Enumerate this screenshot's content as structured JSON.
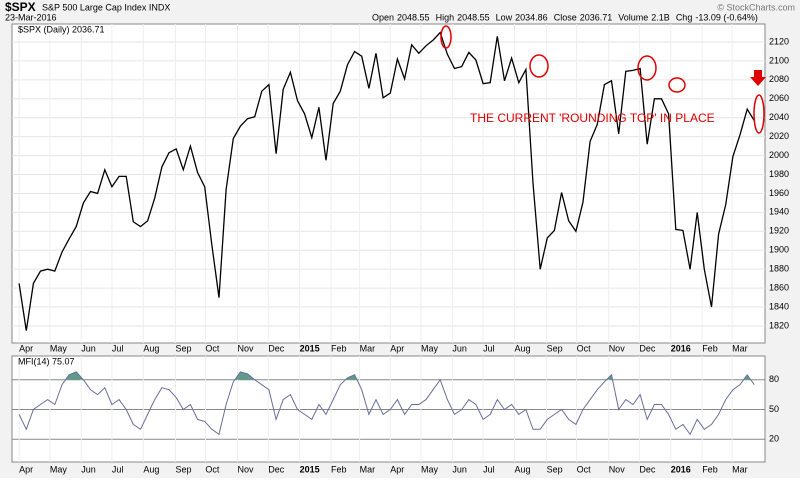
{
  "header": {
    "symbol": "$SPX",
    "name": "S&P 500 Large Cap Index INDX",
    "date": "23-Mar-2016",
    "source": "© StockCharts.com",
    "quote": [
      {
        "label": "Open",
        "value": 2048.55
      },
      {
        "label": "High",
        "value": 2048.55
      },
      {
        "label": "Low",
        "value": 2034.86
      },
      {
        "label": "Close",
        "value": 2036.71
      },
      {
        "label": "Volume",
        "value": "2.1B"
      },
      {
        "label": "Chg",
        "value": "-13.09 (-0.64%)"
      }
    ]
  },
  "chart_data": [
    {
      "type": "line",
      "annotation": "THE CURRENT 'ROUNDING TOP' IN PLACE",
      "x": [
        0,
        1,
        2,
        3,
        4,
        5,
        6,
        7,
        8,
        9,
        10,
        11,
        12,
        13,
        14,
        15,
        16,
        17,
        18,
        19,
        20,
        21,
        22,
        23,
        24,
        25,
        26,
        27,
        28,
        29,
        30,
        31,
        32,
        33,
        34,
        35,
        36,
        37,
        38,
        39,
        40,
        41,
        42,
        43,
        44,
        45,
        46,
        47,
        48,
        49,
        50,
        51,
        52,
        53,
        54,
        55,
        56,
        57,
        58,
        59,
        60,
        61,
        62,
        63,
        64,
        65,
        66,
        67,
        68,
        69,
        70,
        71,
        72,
        73,
        74,
        75,
        76,
        77,
        78,
        79,
        80,
        81,
        82,
        83,
        84,
        85,
        86,
        87,
        88,
        89,
        90,
        91,
        92,
        93,
        94,
        95,
        96,
        97,
        98,
        99,
        100,
        101,
        102,
        103
      ],
      "series": [
        {
          "name": "$SPX (Daily) 2036.71",
          "color": "#000000",
          "values": [
            1865,
            1815,
            1865,
            1878,
            1880,
            1878,
            1898,
            1912,
            1925,
            1950,
            1962,
            1960,
            1985,
            1967,
            1978,
            1978,
            1930,
            1925,
            1931,
            1955,
            1988,
            2003,
            2007,
            1985,
            2010,
            1982,
            1967,
            1906,
            1850,
            1964,
            2018,
            2031,
            2039,
            2041,
            2068,
            2075,
            2002,
            2070,
            2088,
            2058,
            2044,
            2019,
            2051,
            1995,
            2055,
            2068,
            2096,
            2110,
            2105,
            2071,
            2108,
            2061,
            2066,
            2102,
            2081,
            2117,
            2108,
            2116,
            2122,
            2130,
            2107,
            2092,
            2094,
            2109,
            2101,
            2076,
            2077,
            2126,
            2079,
            2103,
            2077,
            2091,
            1971,
            1880,
            1913,
            1921,
            1961,
            1931,
            1920,
            1951,
            2015,
            2033,
            2075,
            2079,
            2023,
            2089,
            2090,
            2092,
            2012,
            2060,
            2060,
            2044,
            1922,
            1921,
            1880,
            1940,
            1880,
            1840,
            1917,
            1948,
            1999,
            2022,
            2049,
            2037
          ]
        }
      ],
      "xlim": [
        -1,
        104.5
      ],
      "ylim": [
        1802,
        2139
      ],
      "yticks": [
        1820,
        1840,
        1860,
        1880,
        1900,
        1920,
        1940,
        1960,
        1980,
        2000,
        2020,
        2040,
        2060,
        2080,
        2100,
        2120
      ],
      "xticks": [
        {
          "value": 0,
          "label": "Apr"
        },
        {
          "value": 4.3,
          "label": "May"
        },
        {
          "value": 8.7,
          "label": "Jun"
        },
        {
          "value": 13,
          "label": "Jul"
        },
        {
          "value": 17.4,
          "label": "Aug"
        },
        {
          "value": 21.9,
          "label": "Sep"
        },
        {
          "value": 26.1,
          "label": "Oct"
        },
        {
          "value": 30.6,
          "label": "Nov"
        },
        {
          "value": 34.9,
          "label": "Dec"
        },
        {
          "value": 39.3,
          "label": "2015"
        },
        {
          "value": 43.7,
          "label": "Feb"
        },
        {
          "value": 47.7,
          "label": "Mar"
        },
        {
          "value": 52,
          "label": "Apr"
        },
        {
          "value": 56.3,
          "label": "May"
        },
        {
          "value": 60.7,
          "label": "Jun"
        },
        {
          "value": 65,
          "label": "Jul"
        },
        {
          "value": 69.4,
          "label": "Aug"
        },
        {
          "value": 73.9,
          "label": "Sep"
        },
        {
          "value": 78.1,
          "label": "Oct"
        },
        {
          "value": 82.6,
          "label": "Nov"
        },
        {
          "value": 86.9,
          "label": "Dec"
        },
        {
          "value": 91.3,
          "label": "2016"
        },
        {
          "value": 95.7,
          "label": "Feb"
        },
        {
          "value": 99.9,
          "label": "Mar"
        }
      ],
      "grid": true
    },
    {
      "type": "line",
      "x": [
        0,
        1,
        2,
        3,
        4,
        5,
        6,
        7,
        8,
        9,
        10,
        11,
        12,
        13,
        14,
        15,
        16,
        17,
        18,
        19,
        20,
        21,
        22,
        23,
        24,
        25,
        26,
        27,
        28,
        29,
        30,
        31,
        32,
        33,
        34,
        35,
        36,
        37,
        38,
        39,
        40,
        41,
        42,
        43,
        44,
        45,
        46,
        47,
        48,
        49,
        50,
        51,
        52,
        53,
        54,
        55,
        56,
        57,
        58,
        59,
        60,
        61,
        62,
        63,
        64,
        65,
        66,
        67,
        68,
        69,
        70,
        71,
        72,
        73,
        74,
        75,
        76,
        77,
        78,
        79,
        80,
        81,
        82,
        83,
        84,
        85,
        86,
        87,
        88,
        89,
        90,
        91,
        92,
        93,
        94,
        95,
        96,
        97,
        98,
        99,
        100,
        101,
        102,
        103
      ],
      "series": [
        {
          "name": "MFI(14) 75.07",
          "color": "#6a6f9a",
          "values": [
            45,
            30,
            50,
            55,
            60,
            55,
            75,
            85,
            88,
            80,
            70,
            65,
            72,
            55,
            60,
            50,
            35,
            30,
            45,
            60,
            72,
            70,
            62,
            50,
            55,
            40,
            38,
            30,
            25,
            55,
            78,
            88,
            86,
            80,
            75,
            70,
            40,
            60,
            65,
            50,
            45,
            40,
            55,
            45,
            60,
            75,
            82,
            85,
            70,
            45,
            60,
            45,
            50,
            60,
            45,
            55,
            55,
            60,
            70,
            80,
            60,
            45,
            50,
            60,
            55,
            40,
            45,
            60,
            50,
            55,
            45,
            50,
            30,
            30,
            40,
            45,
            50,
            40,
            35,
            50,
            60,
            70,
            78,
            85,
            50,
            60,
            55,
            65,
            40,
            55,
            55,
            45,
            30,
            35,
            25,
            40,
            30,
            35,
            45,
            60,
            70,
            75,
            85,
            75
          ]
        }
      ],
      "xlim": [
        -1,
        104.5
      ],
      "ylim": [
        -3,
        104
      ],
      "yticks": [
        20,
        50,
        80
      ],
      "fill_above": 80,
      "fill_color": "#5e9b8a",
      "grid": true
    }
  ]
}
